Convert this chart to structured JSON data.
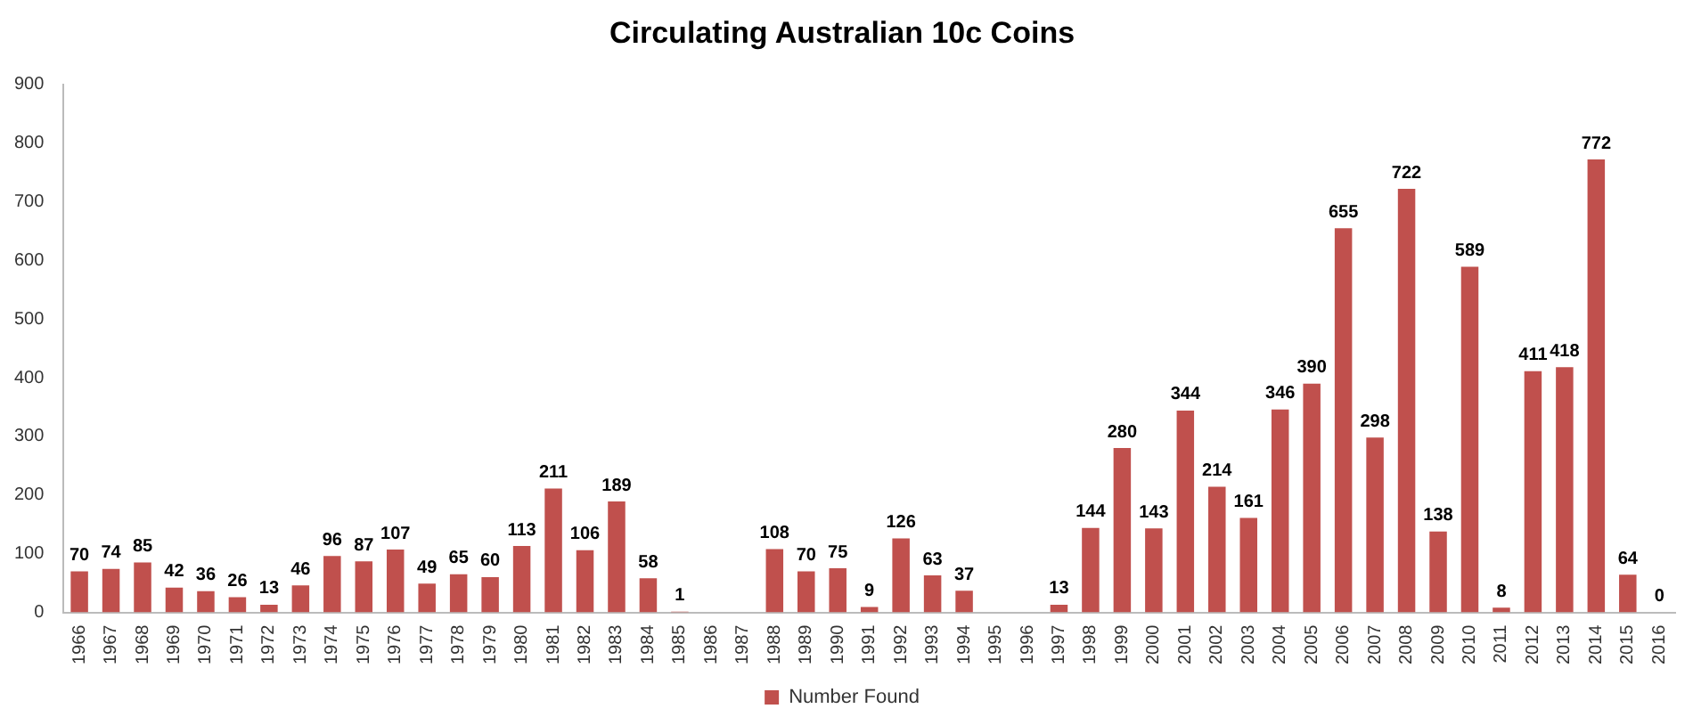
{
  "chart_data": {
    "type": "bar",
    "title": "Circulating Australian 10c Coins",
    "categories": [
      "1966",
      "1967",
      "1968",
      "1969",
      "1970",
      "1971",
      "1972",
      "1973",
      "1974",
      "1975",
      "1976",
      "1977",
      "1978",
      "1979",
      "1980",
      "1981",
      "1982",
      "1983",
      "1984",
      "1985",
      "1986",
      "1987",
      "1988",
      "1989",
      "1990",
      "1991",
      "1992",
      "1993",
      "1994",
      "1995",
      "1996",
      "1997",
      "1998",
      "1999",
      "2000",
      "2001",
      "2002",
      "2003",
      "2004",
      "2005",
      "2006",
      "2007",
      "2008",
      "2009",
      "2010",
      "2011",
      "2012",
      "2013",
      "2014",
      "2015",
      "2016"
    ],
    "series": [
      {
        "name": "Number Found",
        "color": "#c0504d",
        "values": [
          70,
          74,
          85,
          42,
          36,
          26,
          13,
          46,
          96,
          87,
          107,
          49,
          65,
          60,
          113,
          211,
          106,
          189,
          58,
          1,
          null,
          null,
          108,
          70,
          75,
          9,
          126,
          63,
          37,
          null,
          null,
          13,
          144,
          280,
          143,
          344,
          214,
          161,
          346,
          390,
          655,
          298,
          722,
          138,
          589,
          8,
          411,
          418,
          772,
          64,
          0
        ]
      }
    ],
    "ylim": [
      0,
      900
    ],
    "yticks": [
      0,
      100,
      200,
      300,
      400,
      500,
      600,
      700,
      800,
      900
    ],
    "data_labels": true,
    "legend": "bottom",
    "grid": false
  }
}
